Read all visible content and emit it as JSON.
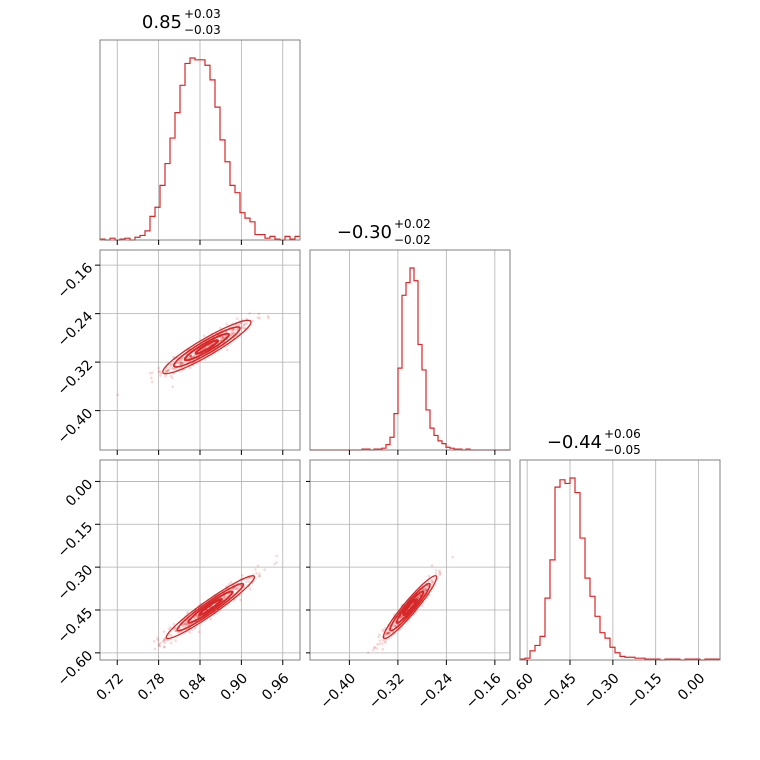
{
  "chart_data": {
    "type": "corner",
    "colors": {
      "series": "#d62728",
      "grid": "#b0b0b0",
      "frame": "#808080"
    },
    "grid": true,
    "parameters": [
      {
        "title": {
          "median": "0.85",
          "plus": "+0.03",
          "minus": "−0.03"
        },
        "range": [
          0.695,
          0.985
        ],
        "ticks": [
          {
            "v": 0.72,
            "label": "0.72"
          },
          {
            "v": 0.78,
            "label": "0.78"
          },
          {
            "v": 0.84,
            "label": "0.84"
          },
          {
            "v": 0.9,
            "label": "0.90"
          },
          {
            "v": 0.96,
            "label": "0.96"
          }
        ],
        "hist": [
          0.005,
          0.0,
          0.01,
          0.0,
          0.005,
          0.01,
          0.0,
          0.015,
          0.025,
          0.05,
          0.13,
          0.18,
          0.3,
          0.42,
          0.56,
          0.7,
          0.85,
          0.97,
          1.0,
          0.99,
          0.99,
          0.96,
          0.88,
          0.73,
          0.55,
          0.43,
          0.3,
          0.26,
          0.15,
          0.12,
          0.1,
          0.03,
          0.03,
          0.01,
          0.02,
          0.005,
          0.0,
          0.02,
          0.005,
          0.02
        ]
      },
      {
        "title": {
          "median": "−0.30",
          "plus": "+0.02",
          "minus": "−0.02"
        },
        "range": [
          -0.465,
          -0.135
        ],
        "ticks": [
          {
            "v": -0.4,
            "label": "−0.40"
          },
          {
            "v": -0.32,
            "label": "−0.32"
          },
          {
            "v": -0.24,
            "label": "−0.24"
          },
          {
            "v": -0.16,
            "label": "−0.16"
          }
        ],
        "hist": [
          0,
          0,
          0,
          0,
          0,
          0,
          0,
          0,
          0,
          0,
          0,
          0,
          0,
          0.005,
          0.005,
          0.0,
          0.005,
          0.005,
          0.01,
          0.03,
          0.07,
          0.2,
          0.45,
          0.85,
          0.92,
          1.0,
          0.93,
          0.58,
          0.44,
          0.22,
          0.12,
          0.08,
          0.05,
          0.035,
          0.015,
          0.01,
          0.005,
          0.005,
          0.0,
          0.005,
          0,
          0,
          0,
          0,
          0,
          0,
          0,
          0,
          0,
          0
        ]
      },
      {
        "title": {
          "median": "−0.44",
          "plus": "+0.06",
          "minus": "−0.05"
        },
        "range": [
          -0.625,
          0.075
        ],
        "ticks": [
          {
            "v": -0.6,
            "label": "−0.60"
          },
          {
            "v": -0.45,
            "label": "−0.45"
          },
          {
            "v": -0.3,
            "label": "−0.30"
          },
          {
            "v": -0.15,
            "label": "−0.15"
          },
          {
            "v": 0.0,
            "label": "0.00"
          }
        ],
        "hist": [
          0.005,
          0.01,
          0.05,
          0.08,
          0.13,
          0.34,
          0.55,
          0.95,
          0.99,
          0.97,
          1.0,
          0.92,
          0.67,
          0.45,
          0.35,
          0.24,
          0.15,
          0.12,
          0.07,
          0.04,
          0.02,
          0.015,
          0.015,
          0.01,
          0.01,
          0.005,
          0.005,
          0.005,
          0.0,
          0.005,
          0.005,
          0.005,
          0.0,
          0.005,
          0.005,
          0.005,
          0.0,
          0.005,
          0.005,
          0.005
        ]
      }
    ],
    "pairs": [
      {
        "x": 0,
        "y": 1,
        "mean": [
          0.85,
          -0.295
        ],
        "sd": [
          0.032,
          0.022
        ],
        "corr": 0.93
      },
      {
        "x": 0,
        "y": 2,
        "mean": [
          0.855,
          -0.44
        ],
        "sd": [
          0.032,
          0.055
        ],
        "corr": 0.96
      },
      {
        "x": 1,
        "y": 2,
        "mean": [
          -0.3,
          -0.44
        ],
        "sd": [
          0.022,
          0.055
        ],
        "corr": 0.95
      }
    ]
  }
}
